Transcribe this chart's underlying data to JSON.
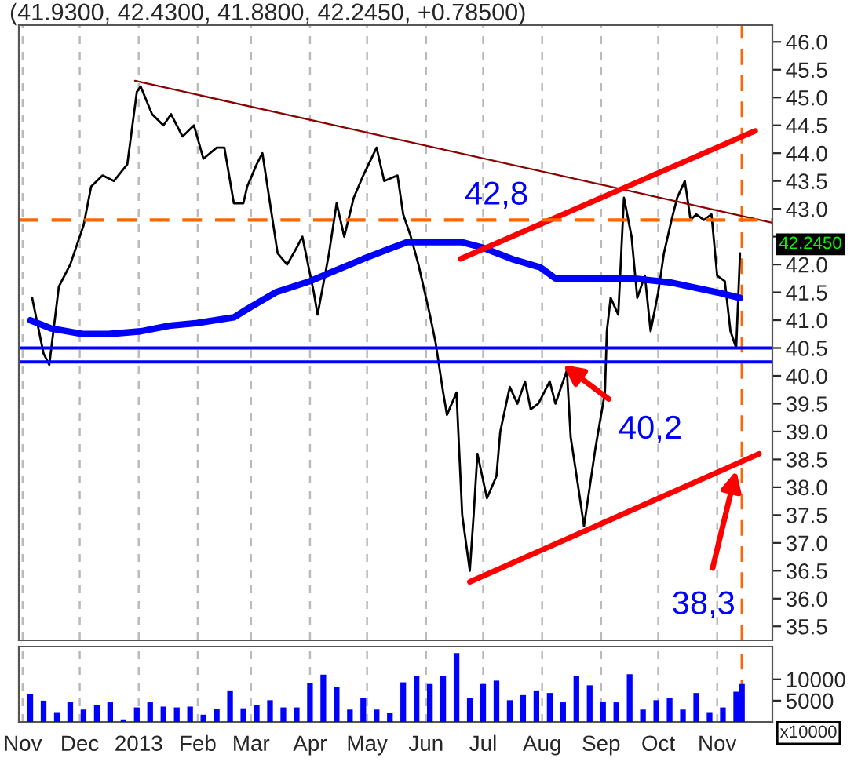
{
  "chart_data": [
    {
      "type": "line",
      "title": "(41.9300, 42.4300, 41.8800, 42.2450, +0.78500)",
      "series": [
        {
          "color": "#000000",
          "x": [
            "2012-11-06",
            "2012-11-12",
            "2012-11-15",
            "2012-11-20",
            "2012-11-26",
            "2012-12-03",
            "2012-12-07",
            "2012-12-13",
            "2012-12-19",
            "2012-12-26",
            "2012-12-31",
            "2013-01-02",
            "2013-01-08",
            "2013-01-14",
            "2013-01-18",
            "2013-01-24",
            "2013-01-30",
            "2013-02-04",
            "2013-02-11",
            "2013-02-15",
            "2013-02-20",
            "2013-02-25",
            "2013-02-27",
            "2013-03-04",
            "2013-03-07",
            "2013-03-11",
            "2013-03-15",
            "2013-03-20",
            "2013-03-25",
            "2013-03-28",
            "2013-04-03",
            "2013-04-05",
            "2013-04-11",
            "2013-04-15",
            "2013-04-19",
            "2013-04-24",
            "2013-04-29",
            "2013-05-06",
            "2013-05-10",
            "2013-05-17",
            "2013-05-20",
            "2013-05-24",
            "2013-05-28",
            "2013-06-03",
            "2013-06-06",
            "2013-06-10",
            "2013-06-12",
            "2013-06-17",
            "2013-06-20",
            "2013-06-24",
            "2013-06-26",
            "2013-06-28",
            "2013-07-03",
            "2013-07-08",
            "2013-07-10",
            "2013-07-15",
            "2013-07-19",
            "2013-07-23",
            "2013-07-26",
            "2013-07-30",
            "2013-08-05",
            "2013-08-08",
            "2013-08-12",
            "2013-08-14",
            "2013-08-16",
            "2013-08-20",
            "2013-08-23",
            "2013-08-26",
            "2013-08-29",
            "2013-09-03",
            "2013-09-04",
            "2013-09-06",
            "2013-09-10",
            "2013-09-13",
            "2013-09-17",
            "2013-09-20",
            "2013-09-24",
            "2013-09-27",
            "2013-10-01",
            "2013-10-04",
            "2013-10-08",
            "2013-10-11",
            "2013-10-15",
            "2013-10-18",
            "2013-10-21",
            "2013-10-25",
            "2013-10-29",
            "2013-11-01",
            "2013-11-05",
            "2013-11-08",
            "2013-11-11",
            "2013-11-13"
          ],
          "values": [
            41.4,
            40.4,
            40.2,
            41.6,
            42.0,
            42.7,
            43.4,
            43.6,
            43.5,
            43.8,
            45.1,
            45.2,
            44.7,
            44.5,
            44.7,
            44.3,
            44.5,
            43.9,
            44.1,
            44.1,
            43.1,
            43.1,
            43.4,
            43.8,
            44.0,
            43.1,
            42.2,
            42.0,
            42.3,
            42.5,
            41.5,
            41.1,
            42.2,
            43.1,
            42.5,
            43.2,
            43.6,
            44.1,
            43.5,
            43.6,
            42.9,
            42.5,
            42.0,
            41.1,
            40.6,
            39.7,
            39.3,
            39.7,
            37.5,
            36.5,
            37.5,
            38.6,
            37.8,
            38.2,
            39.0,
            39.8,
            39.5,
            39.9,
            39.4,
            39.5,
            39.9,
            39.5,
            39.9,
            40.1,
            38.9,
            38.0,
            37.3,
            38.0,
            38.7,
            39.7,
            40.8,
            41.4,
            41.1,
            43.2,
            42.5,
            41.4,
            41.8,
            40.8,
            41.5,
            42.2,
            42.8,
            43.2,
            43.5,
            42.8,
            42.9,
            42.8,
            42.9,
            41.8,
            41.7,
            40.8,
            40.5,
            42.2
          ]
        },
        {
          "color": "#0000ff",
          "x": [
            "2012-11-05",
            "2012-11-16",
            "2012-12-03",
            "2012-12-16",
            "2013-01-02",
            "2013-01-17",
            "2013-02-01",
            "2013-02-20",
            "2013-02-27",
            "2013-03-14",
            "2013-04-01",
            "2013-04-15",
            "2013-04-29",
            "2013-05-14",
            "2013-05-22",
            "2013-06-08",
            "2013-06-20",
            "2013-07-01",
            "2013-07-16",
            "2013-07-31",
            "2013-08-08",
            "2013-08-31",
            "2013-09-18",
            "2013-10-07",
            "2013-11-01",
            "2013-11-13"
          ],
          "values": [
            41.0,
            40.85,
            40.75,
            40.75,
            40.8,
            40.9,
            40.95,
            41.05,
            41.2,
            41.5,
            41.7,
            41.9,
            42.1,
            42.3,
            42.4,
            42.4,
            42.4,
            42.3,
            42.1,
            41.95,
            41.75,
            41.75,
            41.75,
            41.68,
            41.5,
            41.4
          ]
        },
        {
          "color": "#8b0000",
          "x": [
            "2012-12-30",
            "2013-11-30"
          ],
          "values": [
            45.3,
            42.75
          ]
        },
        {
          "color": "#ff0000",
          "x": [
            "2013-06-19",
            "2013-11-21"
          ],
          "values": [
            42.1,
            44.4
          ]
        },
        {
          "color": "#ff0000",
          "x": [
            "2013-06-24",
            "2013-11-23"
          ],
          "values": [
            36.3,
            38.6
          ]
        }
      ],
      "xlim": [
        "2012-10-30",
        "2013-11-30"
      ],
      "xticks": [
        {
          "value": "2012-11-01",
          "label": null
        },
        {
          "value": "2012-12-01",
          "label": null
        },
        {
          "value": "2013-01-01",
          "label": null
        },
        {
          "value": "2013-02-01",
          "label": null
        },
        {
          "value": "2013-03-01",
          "label": null
        },
        {
          "value": "2013-04-01",
          "label": null
        },
        {
          "value": "2013-05-01",
          "label": null
        },
        {
          "value": "2013-06-01",
          "label": null
        },
        {
          "value": "2013-07-01",
          "label": null
        },
        {
          "value": "2013-08-01",
          "label": null
        },
        {
          "value": "2013-09-01",
          "label": null
        },
        {
          "value": "2013-10-01",
          "label": null
        },
        {
          "value": "2013-11-01",
          "label": null
        }
      ],
      "ylim": [
        35.25,
        46.3
      ],
      "yticks": [
        35.5,
        {
          "value": 36,
          "label": "36.0"
        },
        36.5,
        {
          "value": 37,
          "label": "37.0"
        },
        37.5,
        {
          "value": 38,
          "label": "38.0"
        },
        38.5,
        {
          "value": 39,
          "label": "39.0"
        },
        39.5,
        {
          "value": 40,
          "label": "40.0"
        },
        40.5,
        {
          "value": 41,
          "label": "41.0"
        },
        41.5,
        {
          "value": 42,
          "label": "42.0"
        },
        {
          "value": 42.5,
          "label": null
        },
        {
          "value": 43,
          "label": "43.0"
        },
        43.5,
        {
          "value": 44,
          "label": "44.0"
        },
        44.5,
        {
          "value": 45,
          "label": "45.0"
        },
        45.5,
        {
          "value": 46,
          "label": "46.0"
        }
      ],
      "ref_lines": [
        {
          "axis": "y",
          "value": 42.8,
          "color": "#ff6600",
          "line_style": "dashed"
        },
        {
          "axis": "y",
          "value": 40.5,
          "color": "#0000ff"
        },
        {
          "axis": "y",
          "value": 40.25,
          "color": "#0000ff"
        },
        {
          "axis": "x",
          "value": "2013-11-14",
          "color": "#ff6600",
          "line_style": "dashed"
        }
      ],
      "annotations": [
        {
          "text": "42,8",
          "x": "2013-07-08",
          "y": 42.8
        },
        {
          "text": "40,2",
          "x": "2013-08-12",
          "y": 40.2
        },
        {
          "text": "38,3",
          "x": "2013-11-11",
          "y": 38.3
        },
        {
          "text": "42.2450",
          "x": "2013-11-13",
          "y": 42.245
        }
      ],
      "grid": "x",
      "marker": "none",
      "line_style": "solid",
      "tick_labels": "y"
    },
    {
      "type": "bar",
      "x": [
        "2012-11-05",
        "2012-11-12",
        "2012-11-19",
        "2012-11-26",
        "2012-12-03",
        "2012-12-10",
        "2012-12-17",
        "2012-12-24",
        "2012-12-31",
        "2013-01-07",
        "2013-01-14",
        "2013-01-21",
        "2013-01-28",
        "2013-02-04",
        "2013-02-11",
        "2013-02-18",
        "2013-02-25",
        "2013-03-04",
        "2013-03-11",
        "2013-03-18",
        "2013-03-25",
        "2013-04-01",
        "2013-04-08",
        "2013-04-15",
        "2013-04-22",
        "2013-04-29",
        "2013-05-06",
        "2013-05-13",
        "2013-05-20",
        "2013-05-27",
        "2013-06-03",
        "2013-06-10",
        "2013-06-17",
        "2013-06-24",
        "2013-07-01",
        "2013-07-08",
        "2013-07-15",
        "2013-07-22",
        "2013-07-29",
        "2013-08-05",
        "2013-08-12",
        "2013-08-19",
        "2013-08-26",
        "2013-09-02",
        "2013-09-09",
        "2013-09-16",
        "2013-09-23",
        "2013-09-30",
        "2013-10-07",
        "2013-10-14",
        "2013-10-21",
        "2013-10-28",
        "2013-11-04",
        "2013-11-11",
        "2013-11-14"
      ],
      "values": [
        6500,
        5000,
        2300,
        4600,
        2900,
        4000,
        4600,
        600,
        3400,
        4600,
        3600,
        3400,
        3600,
        1700,
        3100,
        7400,
        3200,
        4000,
        5100,
        3400,
        3400,
        9100,
        11100,
        8200,
        2900,
        5700,
        2900,
        2100,
        9300,
        10800,
        8900,
        10800,
        16200,
        5700,
        8900,
        9700,
        5100,
        6300,
        7400,
        6800,
        4600,
        10800,
        8600,
        4800,
        4600,
        11200,
        2900,
        5100,
        5700,
        2900,
        6800,
        2300,
        3400,
        7100,
        8900
      ],
      "color": "#0000ff",
      "xlim": [
        "2012-10-30",
        "2013-11-30"
      ],
      "xticks": [
        {
          "value": "2012-11-01",
          "label": "Nov"
        },
        {
          "value": "2012-12-01",
          "label": "Dec"
        },
        {
          "value": "2013-01-01",
          "label": "2013"
        },
        {
          "value": "2013-02-01",
          "label": "Feb"
        },
        {
          "value": "2013-03-01",
          "label": "Mar"
        },
        {
          "value": "2013-04-01",
          "label": "Apr"
        },
        {
          "value": "2013-05-01",
          "label": "May"
        },
        {
          "value": "2013-06-01",
          "label": "Jun"
        },
        {
          "value": "2013-07-01",
          "label": "Jul"
        },
        {
          "value": "2013-08-01",
          "label": "Aug"
        },
        {
          "value": "2013-09-01",
          "label": "Sep"
        },
        {
          "value": "2013-10-01",
          "label": "Oct"
        },
        {
          "value": "2013-11-01",
          "label": "Nov"
        }
      ],
      "ylim": [
        0,
        17700
      ],
      "yticks": [
        5000,
        10000
      ],
      "ref_lines": [
        {
          "axis": "x",
          "value": "2013-11-14",
          "color": "#ff6600",
          "line_style": "dashed"
        }
      ],
      "annotations": [
        "x10000"
      ],
      "grid": "x"
    }
  ]
}
